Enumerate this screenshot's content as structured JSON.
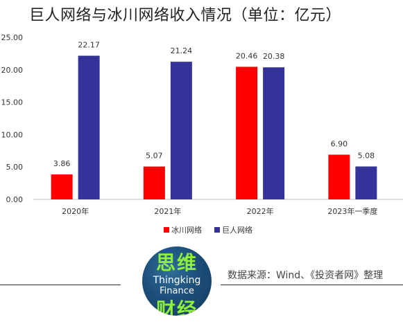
{
  "header": {
    "title": "巨人网络与冰川网络收入情况（单位：亿元）"
  },
  "footer": {
    "source": "数据来源：Wind、《投资者网》整理"
  },
  "logo": {
    "line1": "思维",
    "line2": "Thingking",
    "line3": "Finance",
    "line4": "财经"
  },
  "chart_data": {
    "type": "bar",
    "title": "巨人网络与冰川网络收入情况（单位：亿元）",
    "categories": [
      "2020年",
      "2021年",
      "2022年",
      "2023年一季度"
    ],
    "series": [
      {
        "name": "冰川网络",
        "color": "#ff0000",
        "values": [
          3.86,
          5.07,
          20.46,
          6.9
        ],
        "labels": [
          "3.86",
          "5.07",
          "20.46",
          "6.90"
        ]
      },
      {
        "name": "巨人网络",
        "color": "#333399",
        "values": [
          22.17,
          21.24,
          20.38,
          5.08
        ],
        "labels": [
          "22.17",
          "21.24",
          "20.38",
          "5.08"
        ]
      }
    ],
    "yticks": [
      "0.00",
      "5.00",
      "10.00",
      "15.00",
      "20.00",
      "25.00"
    ],
    "ylim": [
      0,
      25
    ],
    "grid": false,
    "legend": "bottom"
  }
}
